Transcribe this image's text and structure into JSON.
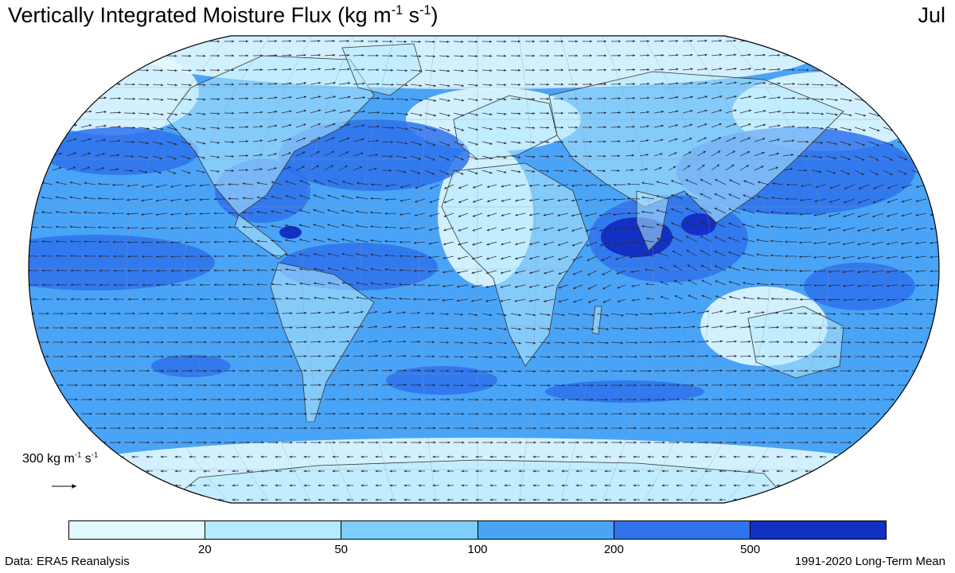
{
  "header": {
    "title_main": "Vertically Integrated Moisture Flux (kg m",
    "title_exp1": "-1",
    "title_mid": " s",
    "title_exp2": "-1",
    "title_end": ")",
    "month": "Jul"
  },
  "reference_vector": {
    "label_main": "300 kg m",
    "label_exp1": "-1",
    "label_mid": " s",
    "label_exp2": "-1"
  },
  "colorbar": {
    "colors": [
      "#e1f8fe",
      "#b4ebfd",
      "#7ccffc",
      "#49a4f7",
      "#2e72ec",
      "#1330c4"
    ],
    "ticks": [
      "20",
      "50",
      "100",
      "200",
      "500"
    ]
  },
  "footer": {
    "source": "Data: ERA5 Reanalysis",
    "period": "1991-2020 Long-Term Mean"
  },
  "map": {
    "projection": "robinson",
    "ocean_base_color": "#49a4f7",
    "land_color": "#b4ebfd",
    "low_flux_color": "#e1f8fe",
    "strong_flux_color": "#2e72ec",
    "peak_flux_color": "#1330c4",
    "arrow_color": "#2a2a3a",
    "coastline_color": "#333333"
  }
}
